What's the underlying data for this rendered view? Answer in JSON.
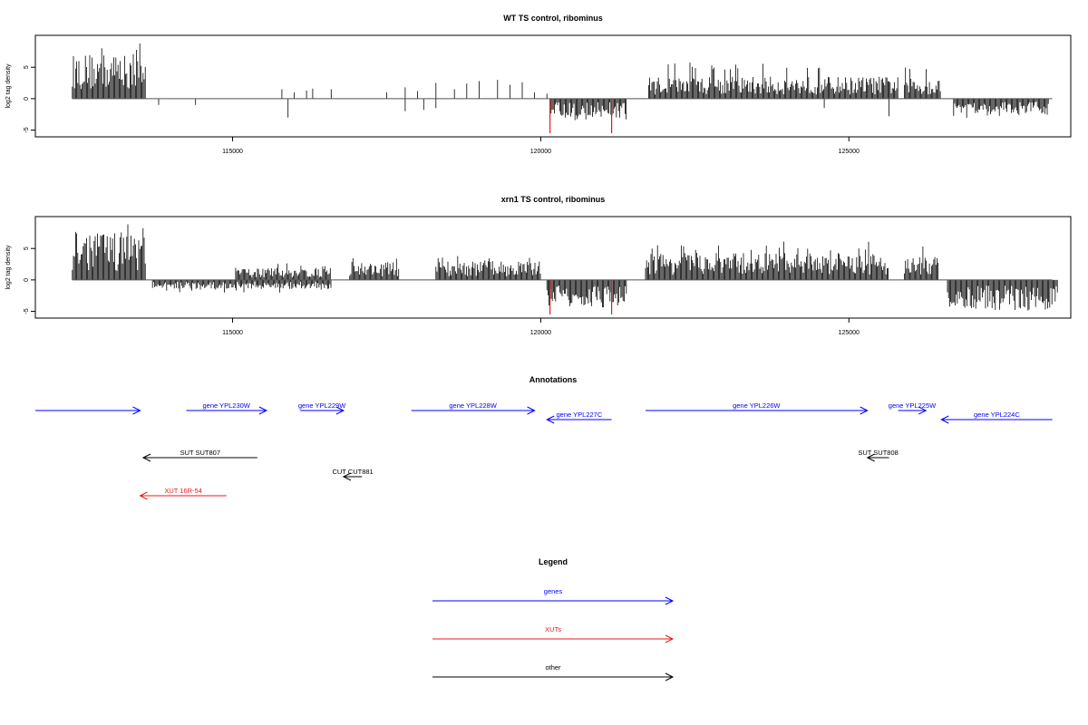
{
  "chart_data": [
    {
      "type": "bar",
      "title": "WT TS control, ribominus",
      "ylabel": "log2 tag density",
      "xlim": [
        111800,
        128600
      ],
      "ylim": [
        -5.5,
        9.5
      ],
      "xticks": [
        115000,
        120000,
        125000
      ],
      "xtick_labels": [
        "115000",
        "120000",
        "125000"
      ],
      "yticks": [
        -5,
        0,
        5
      ],
      "ytick_labels": [
        "-5",
        "0",
        "5"
      ],
      "tracks": [
        {
          "strand": "+",
          "color": "#000000",
          "segments": [
            {
              "start": 112400,
              "end": 113600,
              "max": 9.0,
              "mean": 4.5
            },
            {
              "start": 121750,
              "end": 125800,
              "max": 5.8,
              "mean": 2.2
            },
            {
              "start": 125900,
              "end": 126500,
              "max": 5.5,
              "mean": 2.0
            }
          ]
        },
        {
          "strand": "+",
          "color": "#000000",
          "points": [
            [
              115800,
              1.5
            ],
            [
              116000,
              1.0
            ],
            [
              116200,
              1.3
            ],
            [
              116300,
              1.6
            ],
            [
              116600,
              1.5
            ],
            [
              117500,
              1.0
            ],
            [
              117800,
              1.8
            ],
            [
              118000,
              1.2
            ],
            [
              118300,
              2.5
            ],
            [
              118600,
              1.5
            ],
            [
              118800,
              2.4
            ],
            [
              119000,
              2.8
            ],
            [
              119300,
              3.0
            ],
            [
              119500,
              2.2
            ],
            [
              119700,
              2.6
            ],
            [
              119900,
              1.0
            ],
            [
              120100,
              0.8
            ]
          ]
        },
        {
          "strand": "-",
          "color": "#000000",
          "segments": [
            {
              "start": 120150,
              "end": 121400,
              "max": 3.8,
              "mean": 1.9
            },
            {
              "start": 126700,
              "end": 128250,
              "max": 3.2,
              "mean": 1.6
            }
          ]
        },
        {
          "strand": "-",
          "color": "#000000",
          "points": [
            [
              113800,
              1.0
            ],
            [
              114400,
              1.0
            ],
            [
              115900,
              3.0
            ],
            [
              117800,
              2.0
            ],
            [
              118100,
              1.8
            ],
            [
              118300,
              1.5
            ],
            [
              124600,
              1.5
            ],
            [
              125650,
              2.8
            ]
          ]
        },
        {
          "strand": "-",
          "color": "#e41a1c",
          "points": [
            [
              120150,
              5.5
            ],
            [
              121150,
              5.5
            ]
          ]
        }
      ]
    },
    {
      "type": "bar",
      "title": "xrn1 TS control, ribominus",
      "ylabel": "log2 tag density",
      "xlim": [
        111800,
        128600
      ],
      "ylim": [
        -5.5,
        9.5
      ],
      "xticks": [
        115000,
        120000,
        125000
      ],
      "xtick_labels": [
        "115000",
        "120000",
        "125000"
      ],
      "yticks": [
        -5,
        0,
        5
      ],
      "ytick_labels": [
        "-5",
        "0",
        "5"
      ],
      "tracks": [
        {
          "strand": "+",
          "color": "#000000",
          "segments": [
            {
              "start": 112400,
              "end": 113600,
              "max": 9.2,
              "mean": 4.8
            },
            {
              "start": 115050,
              "end": 116600,
              "max": 2.8,
              "mean": 1.2
            },
            {
              "start": 116900,
              "end": 117700,
              "max": 3.8,
              "mean": 1.8
            },
            {
              "start": 118300,
              "end": 120000,
              "max": 3.8,
              "mean": 1.9
            },
            {
              "start": 121700,
              "end": 125650,
              "max": 6.2,
              "mean": 2.7
            },
            {
              "start": 125900,
              "end": 126450,
              "max": 6.5,
              "mean": 2.3
            }
          ]
        },
        {
          "strand": "-",
          "color": "#000000",
          "segments": [
            {
              "start": 113700,
              "end": 116600,
              "max": 2.0,
              "mean": 0.9
            },
            {
              "start": 120100,
              "end": 121400,
              "max": 4.5,
              "mean": 2.6
            },
            {
              "start": 126600,
              "end": 128400,
              "max": 5.0,
              "mean": 3.0
            }
          ]
        },
        {
          "strand": "-",
          "color": "#e41a1c",
          "points": [
            [
              120150,
              5.5
            ],
            [
              121150,
              5.5
            ]
          ]
        }
      ]
    }
  ],
  "annotations": {
    "title": "Annotations",
    "xlim": [
      111800,
      128600
    ],
    "features": [
      {
        "label": "",
        "start": 111800,
        "end": 113500,
        "strand": "+",
        "color": "#0000ff",
        "row": 0
      },
      {
        "label": "gene YPL230W",
        "start": 114250,
        "end": 115550,
        "strand": "+",
        "color": "#0000ff",
        "row": 0
      },
      {
        "label": "gene YPL229W",
        "start": 116100,
        "end": 116800,
        "strand": "+",
        "color": "#0000ff",
        "row": 0
      },
      {
        "label": "gene YPL228W",
        "start": 117900,
        "end": 119900,
        "strand": "+",
        "color": "#0000ff",
        "row": 0
      },
      {
        "label": "gene YPL227C",
        "start": 120100,
        "end": 121150,
        "strand": "-",
        "color": "#0000ff",
        "row": 1
      },
      {
        "label": "gene YPL226W",
        "start": 121700,
        "end": 125300,
        "strand": "+",
        "color": "#0000ff",
        "row": 0
      },
      {
        "label": "gene YPL225W",
        "start": 125800,
        "end": 126250,
        "strand": "+",
        "color": "#0000ff",
        "row": 0
      },
      {
        "label": "gene YPL224C",
        "start": 126500,
        "end": 128300,
        "strand": "-",
        "color": "#0000ff",
        "row": 1
      },
      {
        "label": "SUT SUT807",
        "start": 113550,
        "end": 115400,
        "strand": "-",
        "color": "#000000",
        "row": 2
      },
      {
        "label": "CUT CUT881",
        "start": 116800,
        "end": 117100,
        "strand": "-",
        "color": "#000000",
        "row": 3
      },
      {
        "label": "SUT SUT808",
        "start": 125300,
        "end": 125650,
        "strand": "-",
        "color": "#000000",
        "row": 2
      },
      {
        "label": "XUT 16R-54",
        "start": 113500,
        "end": 114900,
        "strand": "-",
        "color": "#e41a1c",
        "row": 4
      }
    ]
  },
  "legend": {
    "title": "Legend",
    "items": [
      {
        "label": "genes",
        "color": "#0000ff"
      },
      {
        "label": "XUTs",
        "color": "#e41a1c"
      },
      {
        "label": "other",
        "color": "#000000"
      }
    ]
  }
}
